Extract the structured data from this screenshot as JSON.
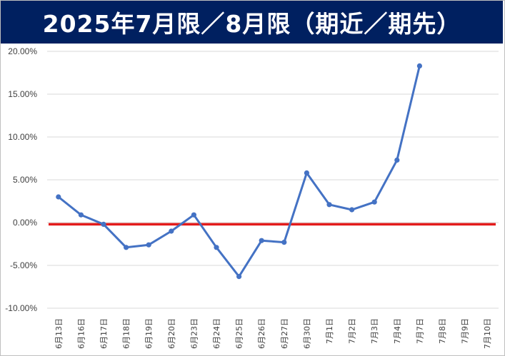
{
  "chart_data": {
    "type": "line",
    "title": "2025年7月限／8月限（期近／期先）",
    "categories": [
      "6月13日",
      "6月16日",
      "6月17日",
      "6月18日",
      "6月19日",
      "6月20日",
      "6月23日",
      "6月24日",
      "6月25日",
      "6月26日",
      "6月27日",
      "6月30日",
      "7月1日",
      "7月2日",
      "7月3日",
      "7月4日",
      "7月7日",
      "7月8日",
      "7月9日",
      "7月10日"
    ],
    "series": [
      {
        "color": "#4472c4",
        "values": [
          3.0,
          0.9,
          -0.2,
          -2.9,
          -2.6,
          -1.0,
          0.9,
          -2.9,
          -6.3,
          -2.1,
          -2.3,
          5.8,
          2.1,
          1.5,
          2.4,
          7.3,
          18.3,
          null,
          null,
          null
        ]
      }
    ],
    "reference_line": {
      "value": -0.2,
      "color": "#e31b1b"
    },
    "ylim": [
      -10,
      20
    ],
    "yticks": [
      "-10.00%",
      "-5.00%",
      "0.00%",
      "5.00%",
      "10.00%",
      "15.00%",
      "20.00%"
    ],
    "ytick_values": [
      -10,
      -5,
      0,
      5,
      10,
      15,
      20
    ],
    "y_unit": "%",
    "grid": true,
    "legend": "none"
  }
}
